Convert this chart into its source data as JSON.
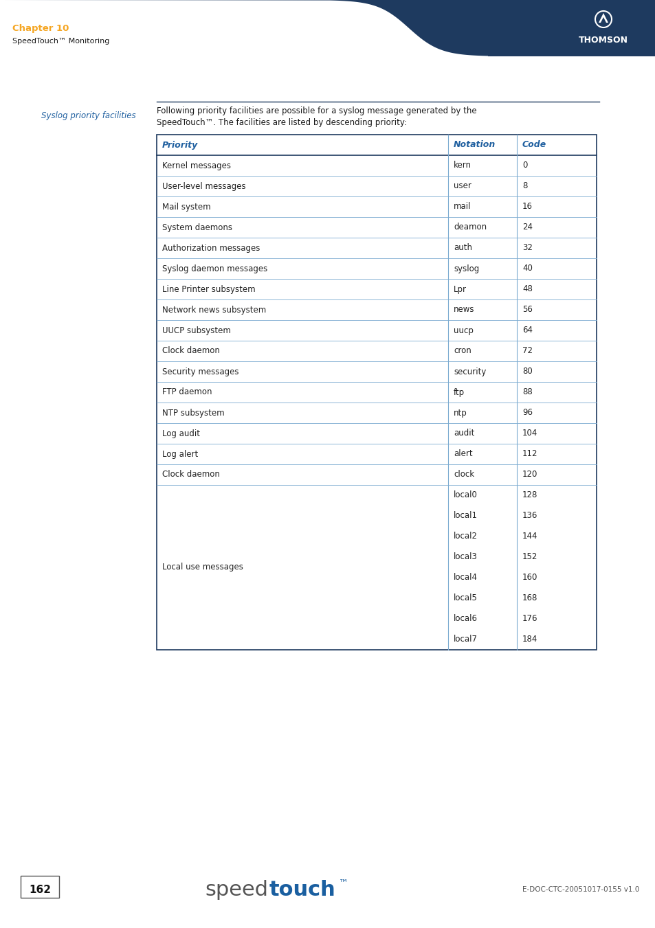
{
  "page_width": 9.54,
  "page_height": 13.51,
  "header_bg_color": "#1e3a5f",
  "chapter_label": "Chapter 10",
  "chapter_label_color": "#f5a623",
  "subtitle": "SpeedTouch™ Monitoring",
  "subtitle_color": "#1a1a1a",
  "section_label": "Syslog priority facilities",
  "section_label_color": "#2060a0",
  "intro_line1": "Following priority facilities are possible for a syslog message generated by the",
  "intro_line2": "SpeedTouch™. The facilities are listed by descending priority:",
  "table_header": [
    "Priority",
    "Notation",
    "Code"
  ],
  "table_header_color": "#2060a0",
  "table_border_color": "#1e3a5f",
  "table_row_border_color": "#7aaad0",
  "table_rows": [
    [
      "Kernel messages",
      "kern",
      "0"
    ],
    [
      "User-level messages",
      "user",
      "8"
    ],
    [
      "Mail system",
      "mail",
      "16"
    ],
    [
      "System daemons",
      "deamon",
      "24"
    ],
    [
      "Authorization messages",
      "auth",
      "32"
    ],
    [
      "Syslog daemon messages",
      "syslog",
      "40"
    ],
    [
      "Line Printer subsystem",
      "Lpr",
      "48"
    ],
    [
      "Network news subsystem",
      "news",
      "56"
    ],
    [
      "UUCP subsystem",
      "uucp",
      "64"
    ],
    [
      "Clock daemon",
      "cron",
      "72"
    ],
    [
      "Security messages",
      "security",
      "80"
    ],
    [
      "FTP daemon",
      "ftp",
      "88"
    ],
    [
      "NTP subsystem",
      "ntp",
      "96"
    ],
    [
      "Log audit",
      "audit",
      "104"
    ],
    [
      "Log alert",
      "alert",
      "112"
    ],
    [
      "Clock daemon",
      "clock",
      "120"
    ],
    [
      "Local use messages",
      "local0|local1|local2|local3|local4|local5|local6|local7",
      "128|136|144|152|160|168|176|184"
    ]
  ],
  "footer_page_num": "162",
  "footer_speed_color": "#555555",
  "footer_touch_color": "#1a5fa0",
  "footer_doc_ref": "E-DOC-CTC-20051017-0155 v1.0",
  "white": "#ffffff",
  "black": "#000000",
  "thomson_color": "#1e3a5f"
}
